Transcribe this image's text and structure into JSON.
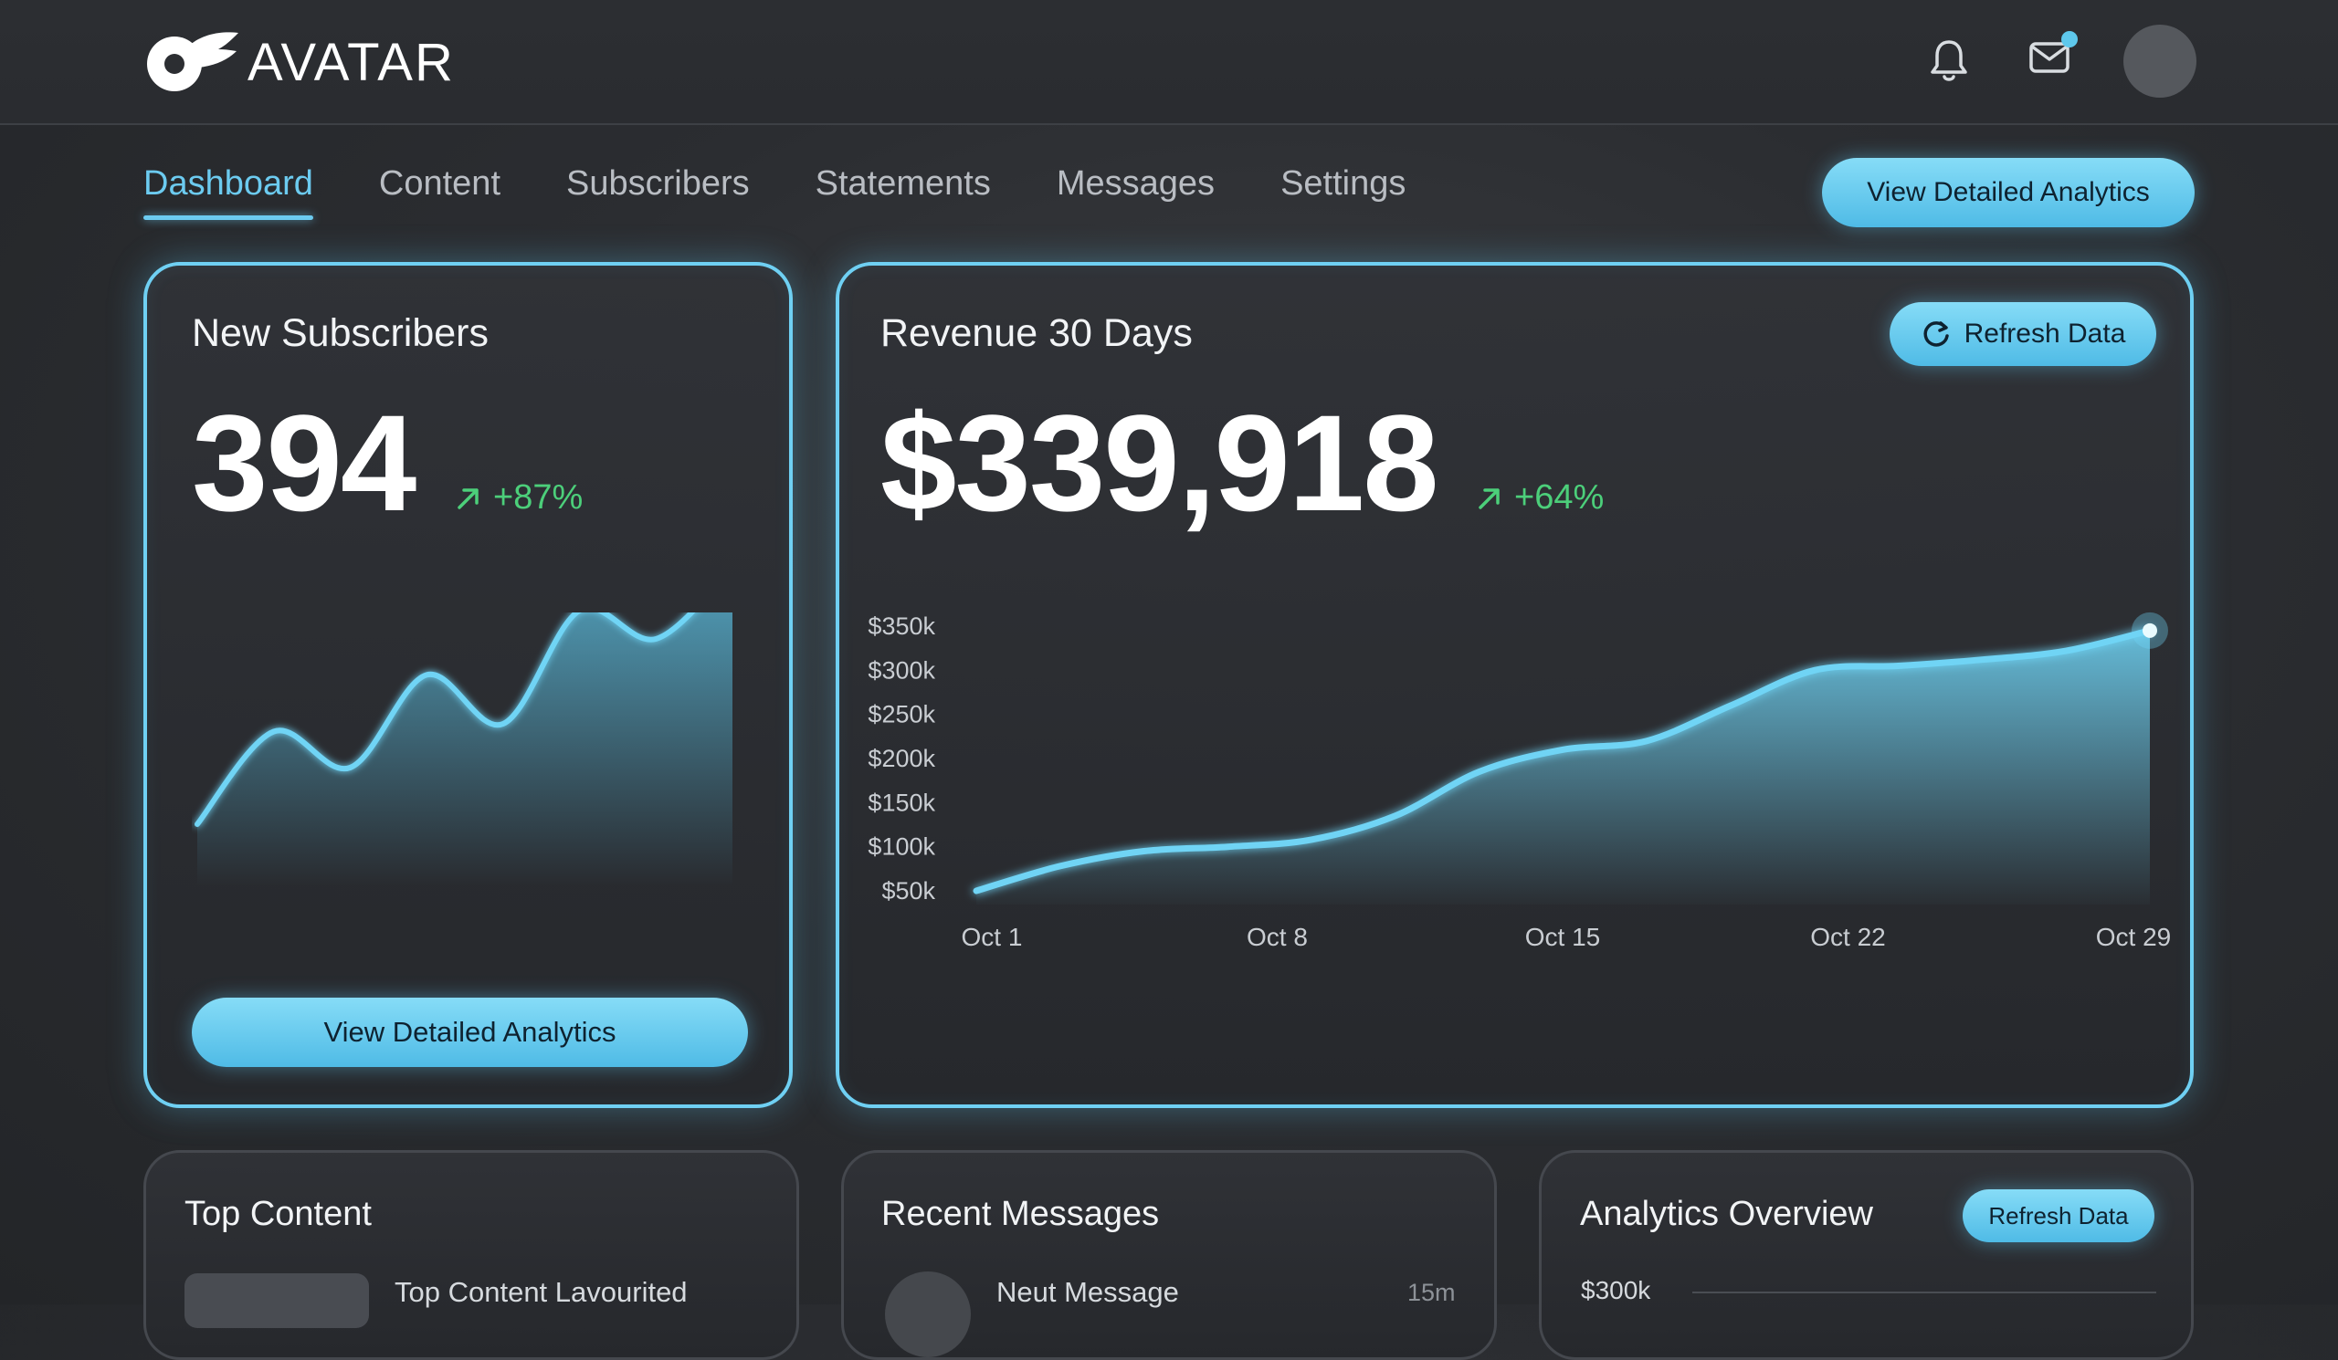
{
  "app": {
    "logo_text": "AVATAR"
  },
  "header": {
    "icons": [
      "bell-icon",
      "mail-icon",
      "user-avatar"
    ],
    "mail_has_notification": true
  },
  "nav": {
    "items": [
      {
        "label": "Dashboard",
        "active": true
      },
      {
        "label": "Content",
        "active": false
      },
      {
        "label": "Subscribers",
        "active": false
      },
      {
        "label": "Statements",
        "active": false
      },
      {
        "label": "Messages",
        "active": false
      },
      {
        "label": "Settings",
        "active": false
      }
    ],
    "analytics_button": "View Detailed Analytics"
  },
  "colors": {
    "accent": "#6ccbf0",
    "positive": "#4ccf7a",
    "background": "#2b2d31"
  },
  "subscribers_card": {
    "title": "New Subscribers",
    "value": "394",
    "delta": "+87%",
    "button": "View Detailed Analytics",
    "spark_values": [
      0.0,
      0.36,
      0.22,
      0.58,
      0.39,
      0.83,
      0.72,
      1.0
    ]
  },
  "revenue_card": {
    "title": "Revenue 30 Days",
    "value": "$339,918",
    "delta": "+64%",
    "refresh_button": "Refresh Data"
  },
  "chart_data": {
    "type": "area",
    "title": "Revenue 30 Days",
    "xlabel": "",
    "ylabel": "",
    "y_ticks": [
      "$350k",
      "$300k",
      "$250k",
      "$200k",
      "$150k",
      "$100k",
      "$50k"
    ],
    "x_ticks": [
      "Oct 1",
      "Oct 8",
      "Oct 15",
      "Oct 22",
      "Oct 29"
    ],
    "ylim": [
      50000,
      350000
    ],
    "grid": false,
    "series": [
      {
        "x": [
          1,
          3,
          5,
          7,
          9,
          11,
          13,
          15,
          17,
          19,
          21,
          23,
          25,
          27,
          29
        ],
        "values": [
          50000,
          78000,
          95000,
          100000,
          108000,
          135000,
          185000,
          210000,
          220000,
          260000,
          300000,
          305000,
          312000,
          322000,
          345000
        ]
      }
    ]
  },
  "top_content": {
    "title": "Top Content",
    "item_title": "Top Content Lavourited"
  },
  "recent_messages": {
    "title": "Recent Messages",
    "item_title": "Neut Message",
    "item_time": "15m"
  },
  "analytics_overview": {
    "title": "Analytics Overview",
    "refresh_button": "Refresh Data",
    "y_label": "$300k"
  }
}
